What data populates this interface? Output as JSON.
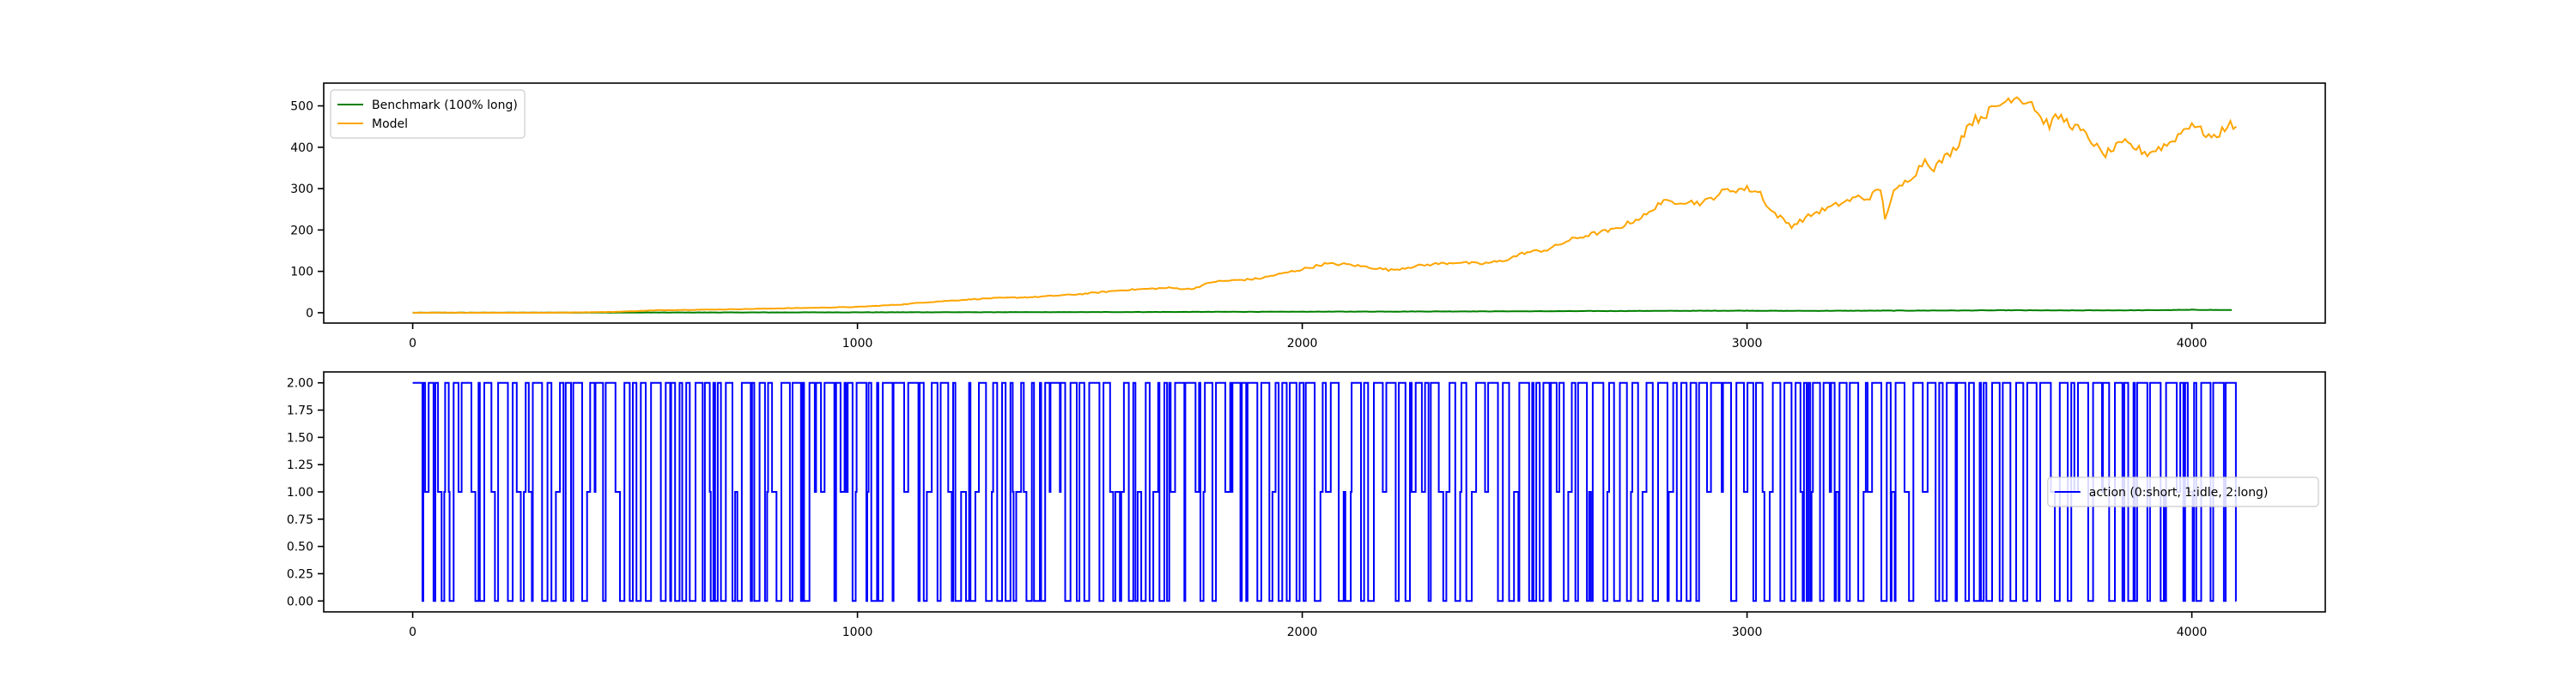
{
  "chart_data": [
    {
      "type": "line",
      "title": "",
      "xlabel": "",
      "ylabel": "",
      "xlim": [
        -200,
        4300
      ],
      "ylim": [
        -25,
        555
      ],
      "xticks": [
        0,
        1000,
        2000,
        3000,
        4000
      ],
      "yticks": [
        0,
        100,
        200,
        300,
        400,
        500
      ],
      "legend": "upper left",
      "series": [
        {
          "name": "Benchmark (100% long)",
          "color": "#008000",
          "x": [
            0,
            500,
            1000,
            1500,
            2000,
            2500,
            2800,
            3000,
            3100,
            3300,
            3500,
            3600,
            3700,
            3900,
            4000,
            4090
          ],
          "y": [
            0,
            0.5,
            1,
            1.5,
            2.5,
            3.5,
            4.5,
            5,
            4.5,
            5,
            5.5,
            6,
            5.5,
            6,
            7,
            6.5
          ]
        },
        {
          "name": "Model",
          "color": "#ffa500",
          "x": [
            0,
            300,
            450,
            550,
            700,
            900,
            1000,
            1100,
            1150,
            1250,
            1300,
            1400,
            1500,
            1600,
            1700,
            1750,
            1800,
            1900,
            2000,
            2050,
            2100,
            2150,
            2200,
            2250,
            2300,
            2350,
            2400,
            2450,
            2500,
            2550,
            2600,
            2650,
            2700,
            2750,
            2780,
            2800,
            2850,
            2900,
            2950,
            3000,
            3030,
            3050,
            3100,
            3150,
            3200,
            3250,
            3270,
            3300,
            3310,
            3330,
            3380,
            3400,
            3420,
            3450,
            3470,
            3500,
            3520,
            3550,
            3600,
            3620,
            3640,
            3660,
            3680,
            3700,
            3750,
            3780,
            3800,
            3830,
            3850,
            3900,
            3950,
            4000,
            4020,
            4050,
            4080,
            4100
          ],
          "y": [
            0,
            0,
            2,
            6,
            8,
            12,
            14,
            20,
            25,
            32,
            35,
            38,
            45,
            55,
            60,
            57,
            75,
            82,
            105,
            118,
            117,
            110,
            103,
            112,
            118,
            122,
            118,
            125,
            145,
            152,
            175,
            190,
            200,
            225,
            240,
            265,
            270,
            265,
            295,
            300,
            290,
            250,
            210,
            240,
            260,
            280,
            275,
            300,
            230,
            290,
            340,
            370,
            350,
            380,
            400,
            460,
            470,
            490,
            525,
            515,
            510,
            470,
            455,
            475,
            440,
            410,
            380,
            400,
            410,
            385,
            410,
            460,
            440,
            420,
            455,
            450
          ]
        }
      ]
    },
    {
      "type": "line",
      "title": "",
      "xlabel": "",
      "ylabel": "",
      "xlim": [
        -200,
        4300
      ],
      "ylim": [
        -0.1,
        2.1
      ],
      "xticks": [
        0,
        1000,
        2000,
        3000,
        4000
      ],
      "yticks": [
        0.0,
        0.25,
        0.5,
        0.75,
        1.0,
        1.25,
        1.5,
        1.75,
        2.0
      ],
      "legend": "center right",
      "series": [
        {
          "name": "action (0:short, 1:idle, 2:long)",
          "color": "#0000ff",
          "step": true,
          "values_allowed": [
            0,
            1,
            2
          ],
          "x_start": 0,
          "x_end": 4100
        }
      ]
    }
  ]
}
